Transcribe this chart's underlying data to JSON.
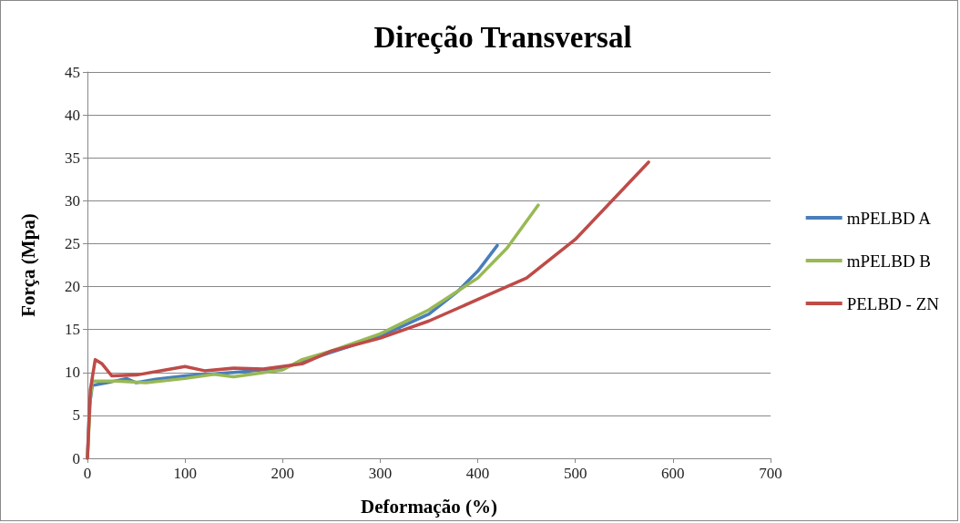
{
  "chart_data": {
    "type": "line",
    "title": "Direção Transversal",
    "xlabel": "Deformação (%)",
    "ylabel": "Força (Mpa)",
    "xlim": [
      0,
      700
    ],
    "xticks": [
      0,
      100,
      200,
      300,
      400,
      500,
      600,
      700
    ],
    "ylim": [
      0,
      45
    ],
    "yticks": [
      0,
      5,
      10,
      15,
      20,
      25,
      30,
      35,
      40,
      45
    ],
    "grid": "y",
    "legend": "right",
    "marker": "none",
    "line_style": "solid",
    "series": [
      {
        "name": "mPELBD A",
        "color": "#4a7ebb",
        "x": [
          0,
          2,
          5,
          20,
          40,
          50,
          70,
          100,
          150,
          200,
          300,
          350,
          380,
          400,
          420
        ],
        "values": [
          0,
          6,
          8.5,
          8.8,
          9.3,
          8.8,
          9.2,
          9.6,
          10,
          10.5,
          14.2,
          16.8,
          19.5,
          21.8,
          24.8
        ]
      },
      {
        "name": "mPELBD B",
        "color": "#98b954",
        "x": [
          0,
          3,
          5,
          30,
          60,
          100,
          130,
          150,
          200,
          220,
          250,
          300,
          350,
          400,
          430,
          462
        ],
        "values": [
          0,
          7,
          9,
          9,
          8.8,
          9.3,
          9.8,
          9.5,
          10.3,
          11.5,
          12.5,
          14.5,
          17.3,
          21,
          24.5,
          29.5
        ]
      },
      {
        "name": "PELBD - ZN",
        "color": "#be4b48",
        "x": [
          0,
          3,
          8,
          15,
          25,
          50,
          80,
          100,
          120,
          150,
          180,
          220,
          250,
          300,
          350,
          400,
          450,
          500,
          550,
          575
        ],
        "values": [
          0,
          8,
          11.5,
          11,
          9.6,
          9.7,
          10.3,
          10.7,
          10.2,
          10.5,
          10.4,
          11,
          12.5,
          14,
          16,
          18.5,
          21,
          25.5,
          31.5,
          34.5
        ]
      }
    ]
  }
}
